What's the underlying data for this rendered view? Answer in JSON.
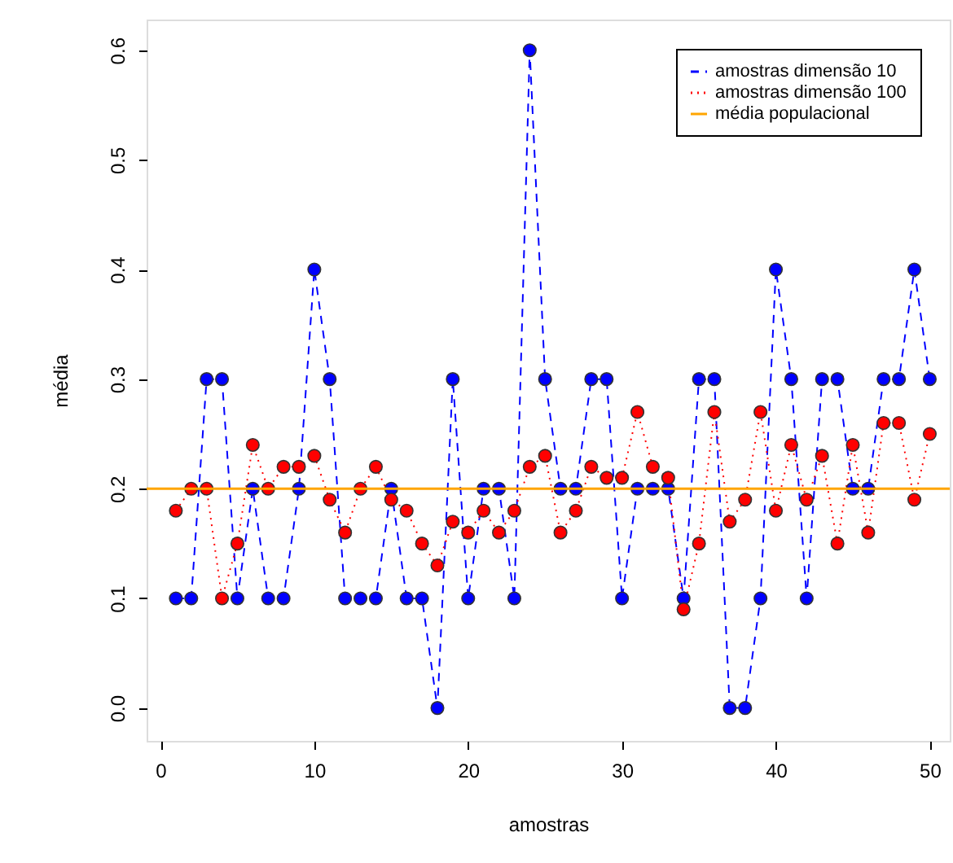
{
  "chart_data": {
    "type": "line",
    "xlabel": "amostras",
    "ylabel": "média",
    "x": [
      1,
      2,
      3,
      4,
      5,
      6,
      7,
      8,
      9,
      10,
      11,
      12,
      13,
      14,
      15,
      16,
      17,
      18,
      19,
      20,
      21,
      22,
      23,
      24,
      25,
      26,
      27,
      28,
      29,
      30,
      31,
      32,
      33,
      34,
      35,
      36,
      37,
      38,
      39,
      40,
      41,
      42,
      43,
      44,
      45,
      46,
      47,
      48,
      49,
      50
    ],
    "series": [
      {
        "name": "amostras dimensão 10",
        "color": "#0000ff",
        "line_style": "dashed",
        "values": [
          0.1,
          0.1,
          0.3,
          0.3,
          0.1,
          0.2,
          0.1,
          0.1,
          0.2,
          0.4,
          0.3,
          0.1,
          0.1,
          0.1,
          0.2,
          0.1,
          0.1,
          0.0,
          0.3,
          0.1,
          0.2,
          0.2,
          0.1,
          0.6,
          0.3,
          0.2,
          0.2,
          0.3,
          0.3,
          0.1,
          0.2,
          0.2,
          0.2,
          0.1,
          0.3,
          0.3,
          0.0,
          0.0,
          0.1,
          0.4,
          0.3,
          0.1,
          0.3,
          0.3,
          0.2,
          0.2,
          0.3,
          0.3,
          0.4,
          0.3
        ]
      },
      {
        "name": "amostras dimensão 100",
        "color": "#ff0000",
        "line_style": "dotted",
        "values": [
          0.18,
          0.2,
          0.2,
          0.1,
          0.15,
          0.24,
          0.2,
          0.22,
          0.22,
          0.23,
          0.19,
          0.16,
          0.2,
          0.22,
          0.19,
          0.18,
          0.15,
          0.13,
          0.17,
          0.16,
          0.18,
          0.16,
          0.18,
          0.22,
          0.23,
          0.16,
          0.18,
          0.22,
          0.21,
          0.21,
          0.27,
          0.22,
          0.21,
          0.09,
          0.15,
          0.27,
          0.17,
          0.19,
          0.27,
          0.18,
          0.24,
          0.19,
          0.23,
          0.15,
          0.24,
          0.16,
          0.26,
          0.26,
          0.19,
          0.25
        ]
      }
    ],
    "marker": "circle",
    "ref_lines": [
      {
        "axis": "y",
        "value": 0.2,
        "label": "média populacional",
        "color": "#ffa500",
        "line_style": "solid"
      }
    ],
    "xlim": [
      -0.9,
      51.3
    ],
    "ylim": [
      -0.03,
      0.628
    ],
    "xticks": [
      0,
      10,
      20,
      30,
      40,
      50
    ],
    "yticks": [
      {
        "value": 0,
        "label": "0.0"
      },
      0.1,
      0.2,
      0.3,
      0.4,
      0.5,
      0.6
    ],
    "grid": false,
    "legend": "top right"
  }
}
